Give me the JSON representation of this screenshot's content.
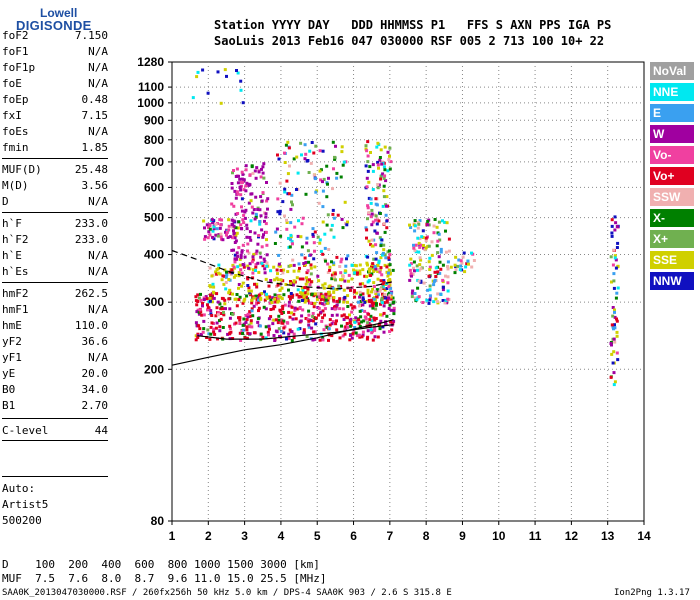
{
  "logo": {
    "line1": "Lowell",
    "line2": "DIGISONDE"
  },
  "header": {
    "row1": "Station YYYY DAY   DDD HHMMSS P1   FFS S AXN PPS IGA PS",
    "row2": "SaoLuis 2013 Feb16 047 030000 RSF 005 2 713 100 10+ 22"
  },
  "params": [
    {
      "k": "foF2",
      "v": "7.150"
    },
    {
      "k": "foF1",
      "v": "N/A"
    },
    {
      "k": "foF1p",
      "v": "N/A"
    },
    {
      "k": "foE",
      "v": "N/A"
    },
    {
      "k": "foEp",
      "v": "0.48"
    },
    {
      "k": "fxI",
      "v": "7.15"
    },
    {
      "k": "foEs",
      "v": "N/A"
    },
    {
      "k": "fmin",
      "v": "1.85"
    },
    {
      "k": "MUF(D)",
      "v": "25.48"
    },
    {
      "k": "M(D)",
      "v": "3.56"
    },
    {
      "k": "D",
      "v": "N/A"
    },
    {
      "k": "h`F",
      "v": "233.0"
    },
    {
      "k": "h`F2",
      "v": "233.0"
    },
    {
      "k": "h`E",
      "v": "N/A"
    },
    {
      "k": "h`Es",
      "v": "N/A"
    },
    {
      "k": "hmF2",
      "v": "262.5"
    },
    {
      "k": "hmF1",
      "v": "N/A"
    },
    {
      "k": "hmE",
      "v": "110.0"
    },
    {
      "k": "yF2",
      "v": "36.6"
    },
    {
      "k": "yF1",
      "v": "N/A"
    },
    {
      "k": "yE",
      "v": "20.0"
    },
    {
      "k": "B0",
      "v": "34.0"
    },
    {
      "k": "B1",
      "v": "2.70"
    },
    {
      "k": "C-level",
      "v": "44"
    }
  ],
  "auto": [
    "Auto:",
    "Artist5",
    "500200"
  ],
  "legend": [
    {
      "label": "NoVal",
      "color": "#a0a0a0"
    },
    {
      "label": "NNE",
      "color": "#00e8f0"
    },
    {
      "label": "E",
      "color": "#3aa0f0"
    },
    {
      "label": "W",
      "color": "#a000a0"
    },
    {
      "label": "Vo-",
      "color": "#f040a0"
    },
    {
      "label": "Vo+",
      "color": "#e00020"
    },
    {
      "label": "SSW",
      "color": "#f0b0b0"
    },
    {
      "label": "X-",
      "color": "#008000"
    },
    {
      "label": "X+",
      "color": "#70b050"
    },
    {
      "label": "SSE",
      "color": "#d0d000"
    },
    {
      "label": "NNW",
      "color": "#1010c0"
    }
  ],
  "footer": {
    "d_row": "D    100  200  400  600  800 1000 1500 3000 [km]",
    "muf_row": "MUF  7.5  7.6  8.0  8.7  9.6 11.0 15.0 25.5 [MHz]",
    "info": "SAA0K_2013047030000.RSF / 260fx256h 50 kHz 5.0 km / DPS-4 SAA0K 903 / 2.6 S 315.8 E",
    "version": "Ion2Png 1.3.17"
  },
  "chart_data": {
    "type": "scatter",
    "xlim": [
      1,
      14
    ],
    "ylim": [
      80,
      1280
    ],
    "x_ticks": [
      "1",
      "2",
      "3",
      "4",
      "5",
      "6",
      "7",
      "8",
      "9",
      "10",
      "11",
      "12",
      "13",
      "14"
    ],
    "y_ticks": [
      "80",
      "200",
      "300",
      "400",
      "500",
      "600",
      "700",
      "800",
      "900",
      "1000",
      "1100",
      "1280"
    ],
    "y_scale": "log",
    "grid": "dotted",
    "legend_position": "right",
    "clusters": [
      {
        "xmin": 1.6,
        "xmax": 7.1,
        "ymin": 240,
        "ymax": 320,
        "n": 520,
        "note": "main F trace"
      },
      {
        "xmin": 2.0,
        "xmax": 7.1,
        "ymin": 300,
        "ymax": 380,
        "n": 360
      },
      {
        "xmin": 2.6,
        "xmax": 3.6,
        "ymin": 360,
        "ymax": 700,
        "n": 180
      },
      {
        "xmin": 1.8,
        "xmax": 2.8,
        "ymin": 440,
        "ymax": 500,
        "n": 60
      },
      {
        "xmin": 3.8,
        "xmax": 5.8,
        "ymin": 380,
        "ymax": 800,
        "n": 160
      },
      {
        "xmin": 6.3,
        "xmax": 7.0,
        "ymin": 300,
        "ymax": 800,
        "n": 170
      },
      {
        "xmin": 7.5,
        "xmax": 8.6,
        "ymin": 300,
        "ymax": 500,
        "n": 160
      },
      {
        "xmin": 8.6,
        "xmax": 9.3,
        "ymin": 360,
        "ymax": 410,
        "n": 25
      },
      {
        "xmin": 13.05,
        "xmax": 13.25,
        "ymin": 180,
        "ymax": 520,
        "n": 60
      },
      {
        "xmin": 1.5,
        "xmax": 3.0,
        "ymin": 1000,
        "ymax": 1250,
        "n": 14
      }
    ],
    "traces": [
      {
        "name": "",
        "style": "solid",
        "points": [
          [
            1,
            205
          ],
          [
            2,
            215
          ],
          [
            3,
            225
          ],
          [
            4,
            232
          ],
          [
            5,
            242
          ],
          [
            6,
            255
          ],
          [
            6.8,
            265
          ],
          [
            7.1,
            270
          ]
        ]
      },
      {
        "name": "",
        "style": "dashed",
        "points": [
          [
            1,
            410
          ],
          [
            1.8,
            385
          ],
          [
            2.6,
            360
          ],
          [
            3.5,
            340
          ],
          [
            4.5,
            330
          ],
          [
            5.5,
            325
          ],
          [
            6.5,
            330
          ],
          [
            7.1,
            340
          ]
        ]
      },
      {
        "name": "",
        "style": "solid",
        "points": [
          [
            1.7,
            245
          ],
          [
            2.5,
            240
          ],
          [
            3.5,
            240
          ],
          [
            4.5,
            245
          ],
          [
            5.5,
            250
          ],
          [
            6.5,
            258
          ],
          [
            7.1,
            262
          ]
        ]
      }
    ]
  }
}
